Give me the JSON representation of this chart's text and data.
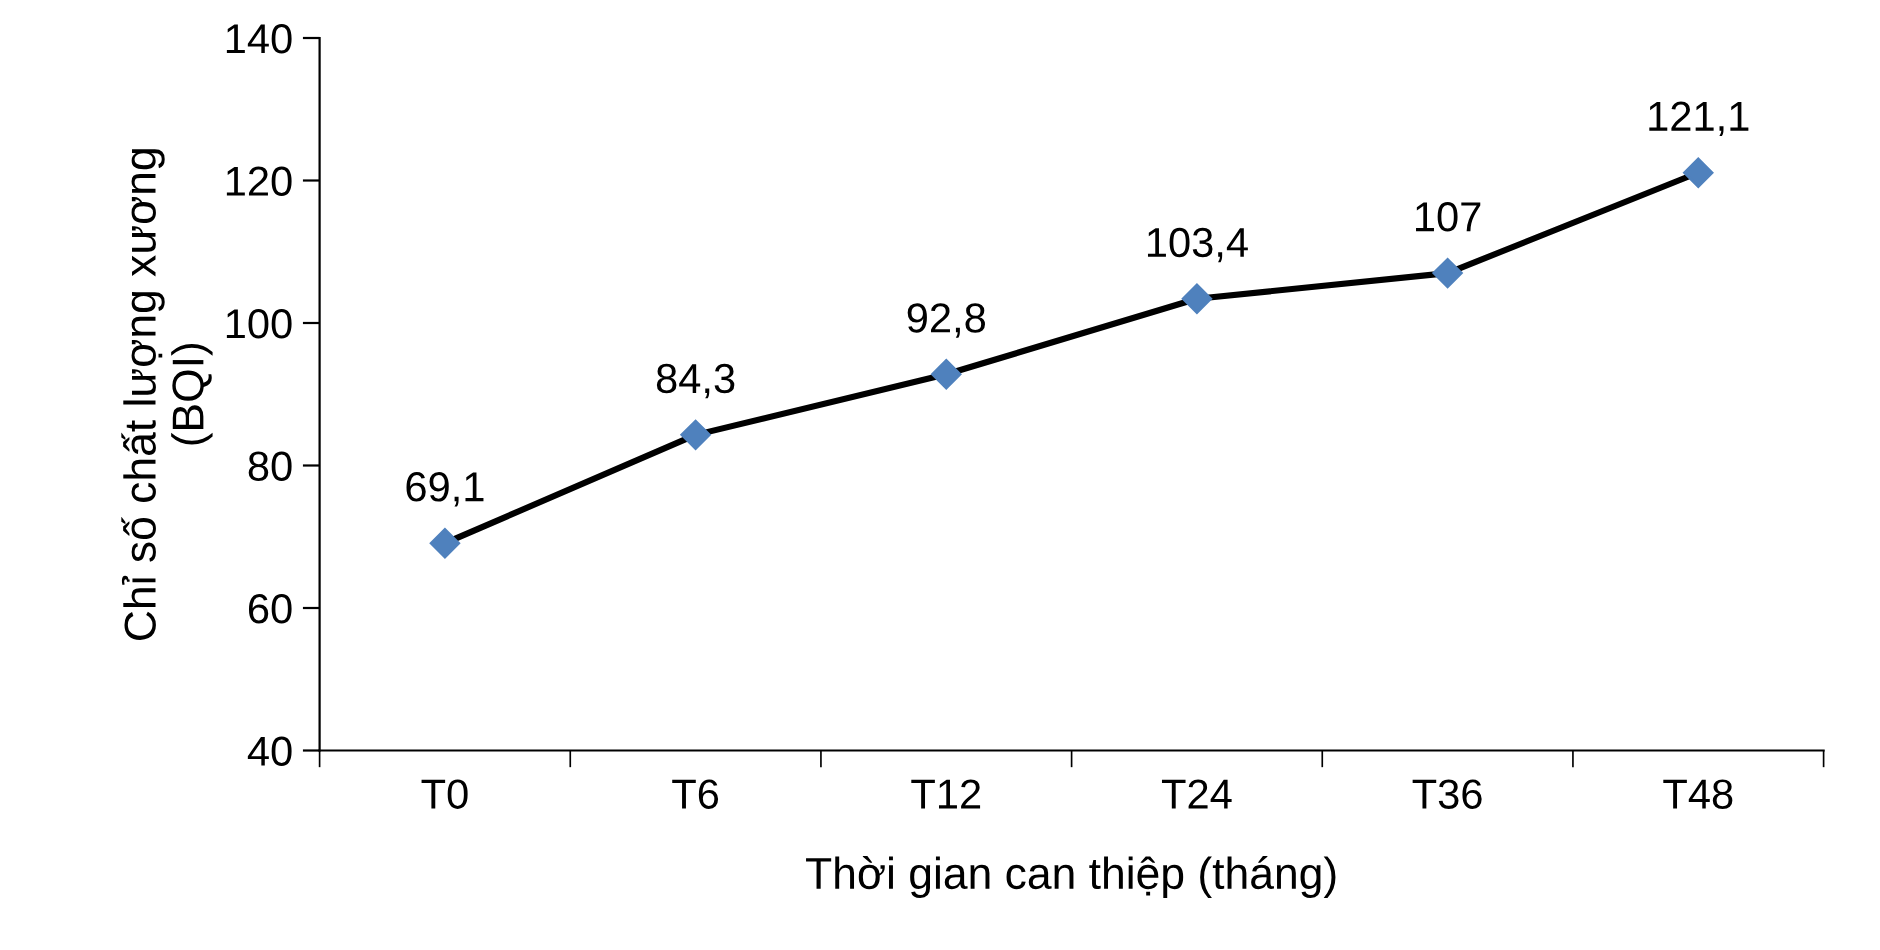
{
  "chart_data": {
    "type": "line",
    "xlabel": "Thời gian can thiệp (tháng)",
    "ylabel": "Chỉ số chất lượng xương\n(BQI)",
    "categories": [
      "T0",
      "T6",
      "T12",
      "T24",
      "T36",
      "T48"
    ],
    "series": [
      {
        "color": "#000000",
        "colors": [
          "#4f81bd",
          "#4f81bd",
          "#4f81bd",
          "#4f81bd",
          "#4f81bd",
          "#4f81bd"
        ],
        "values": [
          69.1,
          84.3,
          92.8,
          103.4,
          107,
          121.1
        ],
        "value_labels": [
          "69,1",
          "84,3",
          "92,8",
          "103,4",
          "107",
          "121,1"
        ]
      }
    ],
    "ylim": [
      40,
      140
    ],
    "yticks": [
      40,
      60,
      80,
      100,
      120,
      140
    ],
    "marker": "diamond",
    "line_style": "solid",
    "grid": false
  }
}
